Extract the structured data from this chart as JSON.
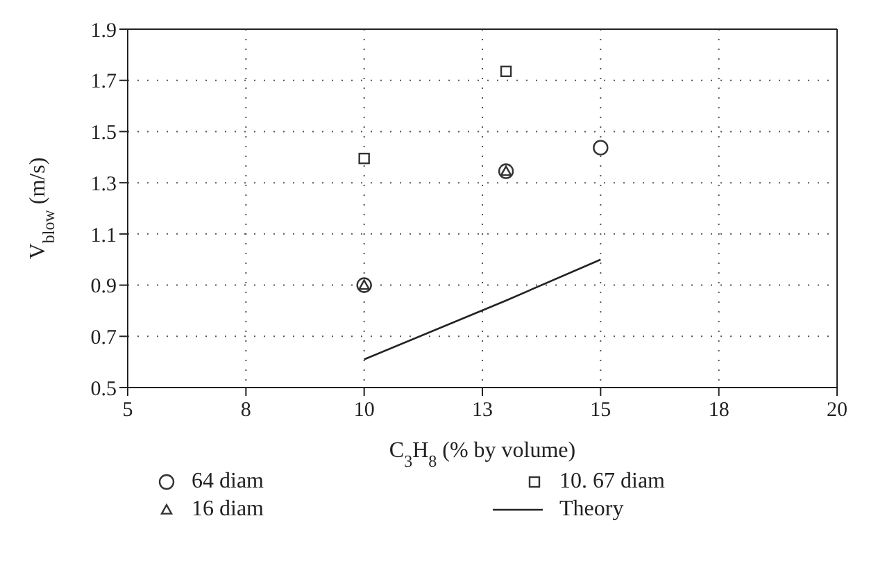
{
  "chart_data": {
    "type": "scatter",
    "xlabel": "C$_{3}$H$_{8}$ (% by volume)",
    "ylabel": "V$_{blow}$ (m/s)",
    "xlim": [
      5,
      20
    ],
    "xticks": [
      5,
      {
        "value": 7.5,
        "label": "8"
      },
      10,
      {
        "value": 12.5,
        "label": "13"
      },
      15,
      {
        "value": 17.5,
        "label": "18"
      },
      20
    ],
    "ylim": [
      0.5,
      1.9
    ],
    "yticks": [
      0.5,
      0.7,
      0.9,
      1.1,
      1.3,
      1.5,
      1.7,
      1.9
    ],
    "grid": true,
    "legend": "bottom",
    "series": [
      {
        "name": "64 diam",
        "color": "#333333",
        "marker": "circle",
        "x": [
          10,
          13,
          15
        ],
        "values": [
          0.9,
          1.345,
          1.437
        ]
      },
      {
        "name": "10. 67 diam",
        "color": "#333333",
        "marker": "square",
        "x": [
          10,
          13
        ],
        "values": [
          1.395,
          1.735
        ]
      },
      {
        "name": "16 diam",
        "color": "#333333",
        "marker": "triangle",
        "x": [
          10,
          13
        ],
        "values": [
          0.9,
          1.345
        ]
      },
      {
        "name": "Theory",
        "type": "line",
        "color": "#222222",
        "marker": "none",
        "x": [
          10,
          13,
          15
        ],
        "values": [
          0.61,
          0.84,
          1.0
        ]
      }
    ]
  }
}
